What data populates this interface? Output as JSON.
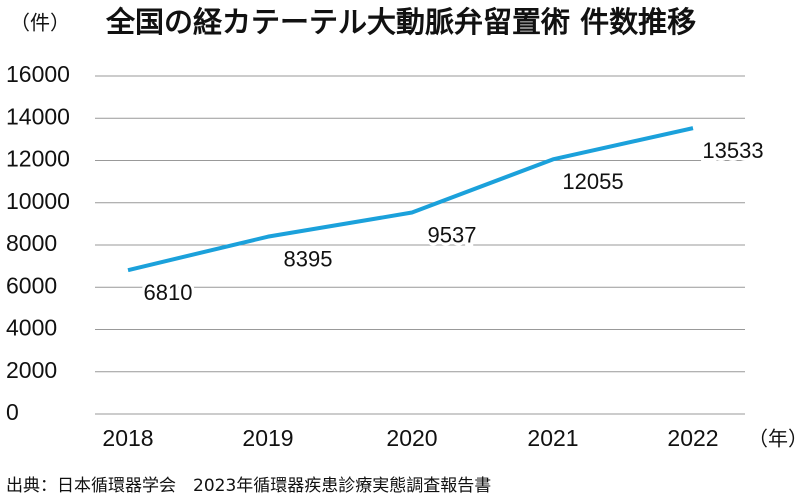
{
  "chart_data": {
    "type": "line",
    "title": "全国の経カテーテル大動脈弁留置術 件数推移",
    "y_unit": "（件）",
    "x_unit": "（年）",
    "source": "出典：日本循環器学会　2023年循環器疾患診療実態調査報告書",
    "categories": [
      "2018",
      "2019",
      "2020",
      "2021",
      "2022"
    ],
    "series": [
      {
        "color": "#1ba1db",
        "values": [
          6810,
          8395,
          9537,
          12055,
          13533
        ]
      }
    ],
    "ylim": [
      0,
      16000
    ],
    "yticks": [
      0,
      2000,
      4000,
      6000,
      8000,
      10000,
      12000,
      14000,
      16000
    ],
    "grid": true
  }
}
